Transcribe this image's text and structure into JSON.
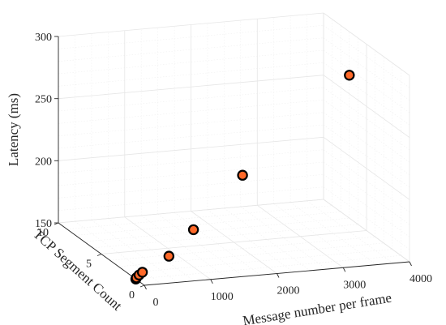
{
  "chart_data": {
    "type": "scatter3d",
    "title": "",
    "xlabel": "Message number per frame",
    "ylabel": "TCP Segment Count",
    "zlabel": "Latency (ms)",
    "xlim": [
      0,
      4000
    ],
    "ylim": [
      0,
      10
    ],
    "zlim": [
      150,
      300
    ],
    "x_ticks": [
      "0",
      "1000",
      "2000",
      "3000",
      "4000"
    ],
    "y_ticks": [
      "0",
      "5",
      "10"
    ],
    "z_ticks": [
      "150",
      "200",
      "250",
      "300"
    ],
    "grid": true,
    "marker_color": "#ff6929",
    "marker_edge_color": "#000000",
    "points": [
      {
        "x": 1,
        "y": 1,
        "z": 150
      },
      {
        "x": 10,
        "y": 1,
        "z": 151
      },
      {
        "x": 50,
        "y": 1,
        "z": 153
      },
      {
        "x": 100,
        "y": 1,
        "z": 155
      },
      {
        "x": 500,
        "y": 1,
        "z": 166
      },
      {
        "x": 1000,
        "y": 2,
        "z": 180
      },
      {
        "x": 2000,
        "y": 4,
        "z": 209
      },
      {
        "x": 4000,
        "y": 7,
        "z": 265
      }
    ]
  }
}
